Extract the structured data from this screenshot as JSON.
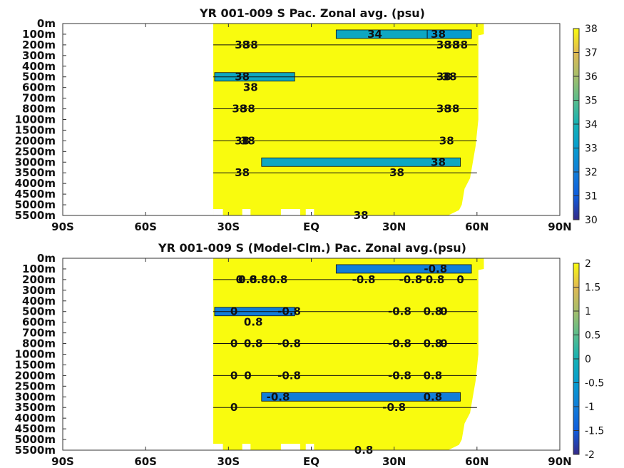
{
  "chart_data": [
    {
      "type": "heatmap",
      "title": "YR 001-009 S Pac. Zonal avg. (psu)",
      "x_ticks": [
        "90S",
        "60S",
        "30S",
        "EQ",
        "30N",
        "60N",
        "90N"
      ],
      "x_values": [
        -90,
        -60,
        -30,
        0,
        30,
        60,
        90
      ],
      "xlim": [
        -90,
        90
      ],
      "y_ticks": [
        "0m",
        "100m",
        "200m",
        "300m",
        "400m",
        "500m",
        "600m",
        "700m",
        "800m",
        "1000m",
        "1500m",
        "2000m",
        "2500m",
        "3000m",
        "3500m",
        "4000m",
        "4500m",
        "5000m",
        "5500m"
      ],
      "colorbar": {
        "ticks": [
          "30",
          "31",
          "32",
          "33",
          "34",
          "35",
          "36",
          "37",
          "38"
        ],
        "min": 30,
        "max": 38,
        "colormap": "parula"
      },
      "background_value": 38,
      "background_color": "#F9FB0E",
      "anomaly_bands": [
        {
          "lat_start": 9,
          "lat_end": 42,
          "depth_level": 1,
          "value": 33.5
        },
        {
          "lat_start": 42,
          "lat_end": 58,
          "depth_level": 1,
          "value": 33
        },
        {
          "lat_start": -35,
          "lat_end": -6,
          "depth_level": 5,
          "value": 33.5
        },
        {
          "lat_start": -18,
          "lat_end": 54,
          "depth_level": 13,
          "value": 33.5
        }
      ],
      "contour_labels": [
        {
          "text": "34",
          "lat": 23,
          "depth_level": 1
        },
        {
          "text": "38",
          "lat": 46,
          "depth_level": 1
        },
        {
          "text": "38",
          "lat": -25,
          "depth_level": 2
        },
        {
          "text": "38",
          "lat": -22,
          "depth_level": 2
        },
        {
          "text": "38",
          "lat": 48,
          "depth_level": 2
        },
        {
          "text": "38",
          "lat": 51,
          "depth_level": 2
        },
        {
          "text": "38",
          "lat": 54,
          "depth_level": 2
        },
        {
          "text": "38",
          "lat": -25,
          "depth_level": 5
        },
        {
          "text": "38",
          "lat": -22,
          "depth_level": 6
        },
        {
          "text": "38",
          "lat": 48,
          "depth_level": 5
        },
        {
          "text": "38",
          "lat": 50,
          "depth_level": 5
        },
        {
          "text": "38",
          "lat": -26,
          "depth_level": 8
        },
        {
          "text": "38",
          "lat": -23,
          "depth_level": 8
        },
        {
          "text": "38",
          "lat": 48,
          "depth_level": 8
        },
        {
          "text": "38",
          "lat": 51,
          "depth_level": 8
        },
        {
          "text": "38",
          "lat": -25,
          "depth_level": 11
        },
        {
          "text": "38",
          "lat": -23,
          "depth_level": 11
        },
        {
          "text": "38",
          "lat": 49,
          "depth_level": 11
        },
        {
          "text": "38",
          "lat": 46,
          "depth_level": 13
        },
        {
          "text": "38",
          "lat": -25,
          "depth_level": 14
        },
        {
          "text": "38",
          "lat": 31,
          "depth_level": 14
        },
        {
          "text": "38",
          "lat": 18,
          "depth_level": 18
        }
      ]
    },
    {
      "type": "heatmap",
      "title": "YR 001-009 S (Model-Clm.) Pac. Zonal avg.(psu)",
      "x_ticks": [
        "90S",
        "60S",
        "30S",
        "EQ",
        "30N",
        "60N",
        "90N"
      ],
      "x_values": [
        -90,
        -60,
        -30,
        0,
        30,
        60,
        90
      ],
      "xlim": [
        -90,
        90
      ],
      "y_ticks": [
        "0m",
        "100m",
        "200m",
        "300m",
        "400m",
        "500m",
        "600m",
        "700m",
        "800m",
        "1000m",
        "1500m",
        "2000m",
        "2500m",
        "3000m",
        "3500m",
        "4000m",
        "4500m",
        "5000m",
        "5500m"
      ],
      "colorbar": {
        "ticks": [
          "2",
          "1.5",
          "1",
          "0.5",
          "0",
          "-0.5",
          "-1",
          "-1.5",
          "-2"
        ],
        "min": -2,
        "max": 2,
        "colormap": "parula"
      },
      "background_value": 2,
      "background_color": "#F9FB0E",
      "anomaly_bands": [
        {
          "lat_start": 9,
          "lat_end": 58,
          "depth_level": 1,
          "value": -1
        },
        {
          "lat_start": -35,
          "lat_end": -6,
          "depth_level": 5,
          "value": -1
        },
        {
          "lat_start": -18,
          "lat_end": 54,
          "depth_level": 13,
          "value": -1
        }
      ],
      "contour_labels": [
        {
          "text": "0",
          "lat": -26,
          "depth_level": 2
        },
        {
          "text": "0.8",
          "lat": -23,
          "depth_level": 2
        },
        {
          "text": "0.8",
          "lat": -19,
          "depth_level": 2
        },
        {
          "text": "0.8",
          "lat": -12,
          "depth_level": 2
        },
        {
          "text": "-0.8",
          "lat": 19,
          "depth_level": 2
        },
        {
          "text": "-0.8",
          "lat": 36,
          "depth_level": 2
        },
        {
          "text": "-0.8",
          "lat": 44,
          "depth_level": 2
        },
        {
          "text": "0",
          "lat": 54,
          "depth_level": 2
        },
        {
          "text": "-0.8",
          "lat": 45,
          "depth_level": 1
        },
        {
          "text": "0",
          "lat": -28,
          "depth_level": 5
        },
        {
          "text": "0.8",
          "lat": -21,
          "depth_level": 6
        },
        {
          "text": "-0.8",
          "lat": -8,
          "depth_level": 5
        },
        {
          "text": "-0.8",
          "lat": 32,
          "depth_level": 5
        },
        {
          "text": "0.8",
          "lat": 44,
          "depth_level": 5
        },
        {
          "text": "0",
          "lat": 48,
          "depth_level": 5
        },
        {
          "text": "0",
          "lat": -28,
          "depth_level": 8
        },
        {
          "text": "0.8",
          "lat": -21,
          "depth_level": 8
        },
        {
          "text": "-0.8",
          "lat": -8,
          "depth_level": 8
        },
        {
          "text": "-0.8",
          "lat": 32,
          "depth_level": 8
        },
        {
          "text": "0.8",
          "lat": 44,
          "depth_level": 8
        },
        {
          "text": "0",
          "lat": 48,
          "depth_level": 8
        },
        {
          "text": "0",
          "lat": -28,
          "depth_level": 11
        },
        {
          "text": "0",
          "lat": -23,
          "depth_level": 11
        },
        {
          "text": "-0.8",
          "lat": -8,
          "depth_level": 11
        },
        {
          "text": "-0.8",
          "lat": 32,
          "depth_level": 11
        },
        {
          "text": "0.8",
          "lat": 44,
          "depth_level": 11
        },
        {
          "text": "-0.8",
          "lat": -12,
          "depth_level": 13
        },
        {
          "text": "0.8",
          "lat": 44,
          "depth_level": 13
        },
        {
          "text": "0",
          "lat": -28,
          "depth_level": 14
        },
        {
          "text": "-0.8",
          "lat": 30,
          "depth_level": 14
        },
        {
          "text": "0.8",
          "lat": 19,
          "depth_level": 18
        }
      ]
    }
  ]
}
